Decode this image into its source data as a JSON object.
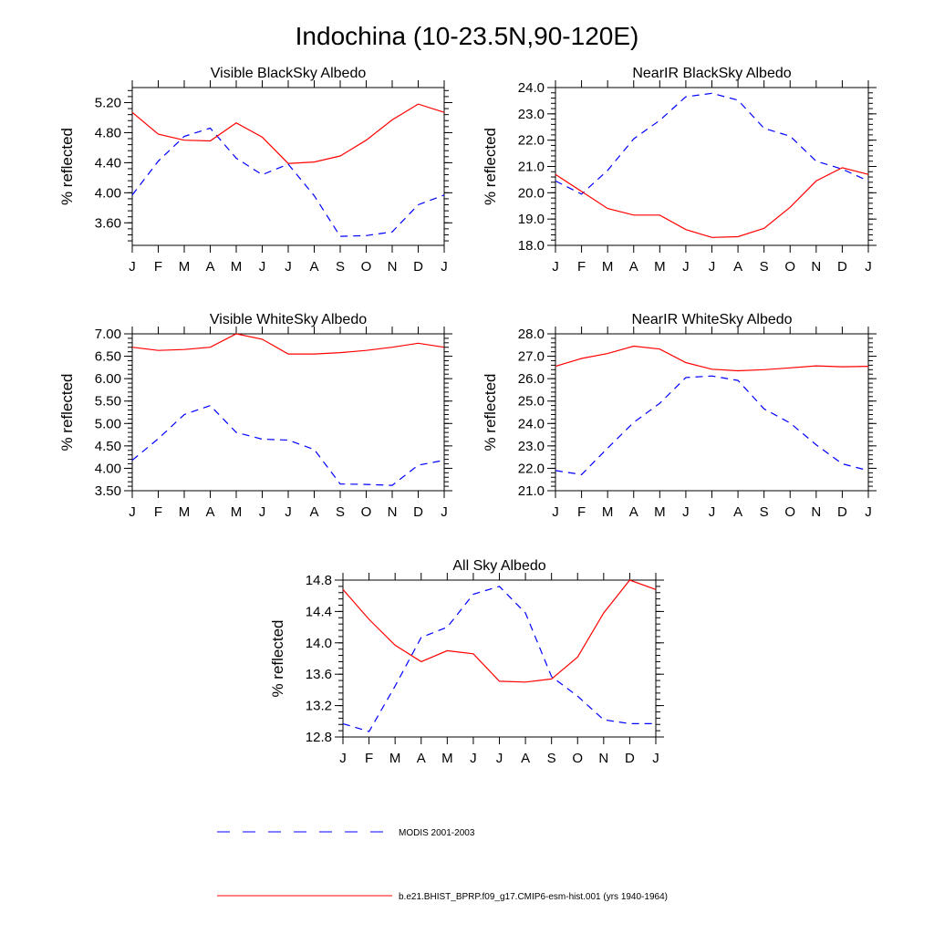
{
  "title": "Indochina (10-23.5N,90-120E)",
  "legend": [
    {
      "label": "MODIS 2001-2003",
      "color": "#0000ff",
      "dash": "dashed"
    },
    {
      "label": "b.e21.BHIST_BPRP.f09_g17.CMIP6-esm-hist.001 (yrs 1940-1964)",
      "color": "#ff0000",
      "dash": "solid"
    }
  ],
  "chart_data": [
    {
      "type": "line",
      "title": "Visible BlackSky Albedo",
      "ylabel": "% reflected",
      "categories": [
        "J",
        "F",
        "M",
        "A",
        "M",
        "J",
        "J",
        "A",
        "S",
        "O",
        "N",
        "D",
        "J"
      ],
      "ylim": [
        3.3,
        5.4
      ],
      "yticks": [
        "3.60",
        "4.00",
        "4.40",
        "4.80",
        "5.20"
      ],
      "ytick_step_minor": 0.08,
      "series": [
        {
          "name": "MODIS 2001-2003",
          "color": "#0000ff",
          "dash": "dashed",
          "values": [
            3.97,
            4.42,
            4.75,
            4.86,
            4.46,
            4.24,
            4.38,
            3.96,
            3.42,
            3.43,
            3.48,
            3.84,
            3.97
          ]
        },
        {
          "name": "b.e21.BHIST_BPRP.f09_g17.CMIP6-esm-hist.001 (yrs 1940-1964)",
          "color": "#ff0000",
          "dash": "solid",
          "values": [
            5.07,
            4.78,
            4.7,
            4.69,
            4.93,
            4.74,
            4.39,
            4.41,
            4.49,
            4.7,
            4.97,
            5.18,
            5.07
          ]
        }
      ]
    },
    {
      "type": "line",
      "title": "NearIR BlackSky Albedo",
      "ylabel": "% reflected",
      "categories": [
        "J",
        "F",
        "M",
        "A",
        "M",
        "J",
        "J",
        "A",
        "S",
        "O",
        "N",
        "D",
        "J"
      ],
      "ylim": [
        18.0,
        24.0
      ],
      "yticks": [
        "18.0",
        "19.0",
        "20.0",
        "21.0",
        "22.0",
        "23.0",
        "24.0"
      ],
      "ytick_step_minor": 0.2,
      "series": [
        {
          "name": "MODIS 2001-2003",
          "color": "#0000ff",
          "dash": "dashed",
          "values": [
            20.45,
            19.95,
            20.85,
            22.05,
            22.75,
            23.65,
            23.78,
            23.52,
            22.45,
            22.15,
            21.2,
            20.9,
            20.45
          ]
        },
        {
          "name": "b.e21.BHIST_BPRP.f09_g17.CMIP6-esm-hist.001 (yrs 1940-1964)",
          "color": "#ff0000",
          "dash": "solid",
          "values": [
            20.7,
            20.05,
            19.4,
            19.15,
            19.15,
            18.6,
            18.3,
            18.33,
            18.65,
            19.45,
            20.45,
            20.95,
            20.7
          ]
        }
      ]
    },
    {
      "type": "line",
      "title": "Visible WhiteSky Albedo",
      "ylabel": "% reflected",
      "categories": [
        "J",
        "F",
        "M",
        "A",
        "M",
        "J",
        "J",
        "A",
        "S",
        "O",
        "N",
        "D",
        "J"
      ],
      "ylim": [
        3.5,
        7.0
      ],
      "yticks": [
        "3.50",
        "4.00",
        "4.50",
        "5.00",
        "5.50",
        "6.00",
        "6.50",
        "7.00"
      ],
      "ytick_step_minor": 0.1,
      "series": [
        {
          "name": "MODIS 2001-2003",
          "color": "#0000ff",
          "dash": "dashed",
          "values": [
            4.18,
            4.66,
            5.2,
            5.4,
            4.8,
            4.65,
            4.63,
            4.42,
            3.65,
            3.64,
            3.62,
            4.07,
            4.18
          ]
        },
        {
          "name": "b.e21.BHIST_BPRP.f09_g17.CMIP6-esm-hist.001 (yrs 1940-1964)",
          "color": "#ff0000",
          "dash": "solid",
          "values": [
            6.7,
            6.63,
            6.65,
            6.7,
            7.0,
            6.88,
            6.55,
            6.55,
            6.58,
            6.63,
            6.7,
            6.79,
            6.7
          ]
        }
      ]
    },
    {
      "type": "line",
      "title": "NearIR WhiteSky Albedo",
      "ylabel": "% reflected",
      "categories": [
        "J",
        "F",
        "M",
        "A",
        "M",
        "J",
        "J",
        "A",
        "S",
        "O",
        "N",
        "D",
        "J"
      ],
      "ylim": [
        21.0,
        28.0
      ],
      "yticks": [
        "21.0",
        "22.0",
        "23.0",
        "24.0",
        "25.0",
        "26.0",
        "27.0",
        "28.0"
      ],
      "ytick_step_minor": 0.2,
      "series": [
        {
          "name": "MODIS 2001-2003",
          "color": "#0000ff",
          "dash": "dashed",
          "values": [
            21.9,
            21.72,
            22.9,
            24.05,
            24.9,
            26.05,
            26.12,
            25.92,
            24.65,
            24.02,
            23.05,
            22.2,
            21.9
          ]
        },
        {
          "name": "b.e21.BHIST_BPRP.f09_g17.CMIP6-esm-hist.001 (yrs 1940-1964)",
          "color": "#ff0000",
          "dash": "solid",
          "values": [
            26.55,
            26.9,
            27.12,
            27.45,
            27.32,
            26.72,
            26.42,
            26.35,
            26.4,
            26.48,
            26.57,
            26.53,
            26.55
          ]
        }
      ]
    },
    {
      "type": "line",
      "title": "All Sky Albedo",
      "ylabel": "% reflected",
      "categories": [
        "J",
        "F",
        "M",
        "A",
        "M",
        "J",
        "J",
        "A",
        "S",
        "O",
        "N",
        "D",
        "J"
      ],
      "ylim": [
        12.8,
        14.8
      ],
      "yticks": [
        "12.8",
        "13.2",
        "13.6",
        "14.0",
        "14.4",
        "14.8"
      ],
      "ytick_step_minor": 0.08,
      "series": [
        {
          "name": "MODIS 2001-2003",
          "color": "#0000ff",
          "dash": "dashed",
          "values": [
            12.97,
            12.87,
            13.45,
            14.07,
            14.2,
            14.62,
            14.72,
            14.38,
            13.57,
            13.32,
            13.02,
            12.97,
            12.97
          ]
        },
        {
          "name": "b.e21.BHIST_BPRP.f09_g17.CMIP6-esm-hist.001 (yrs 1940-1964)",
          "color": "#ff0000",
          "dash": "solid",
          "values": [
            14.68,
            14.3,
            13.97,
            13.76,
            13.9,
            13.86,
            13.51,
            13.5,
            13.54,
            13.82,
            14.38,
            14.8,
            14.68
          ]
        }
      ]
    }
  ]
}
